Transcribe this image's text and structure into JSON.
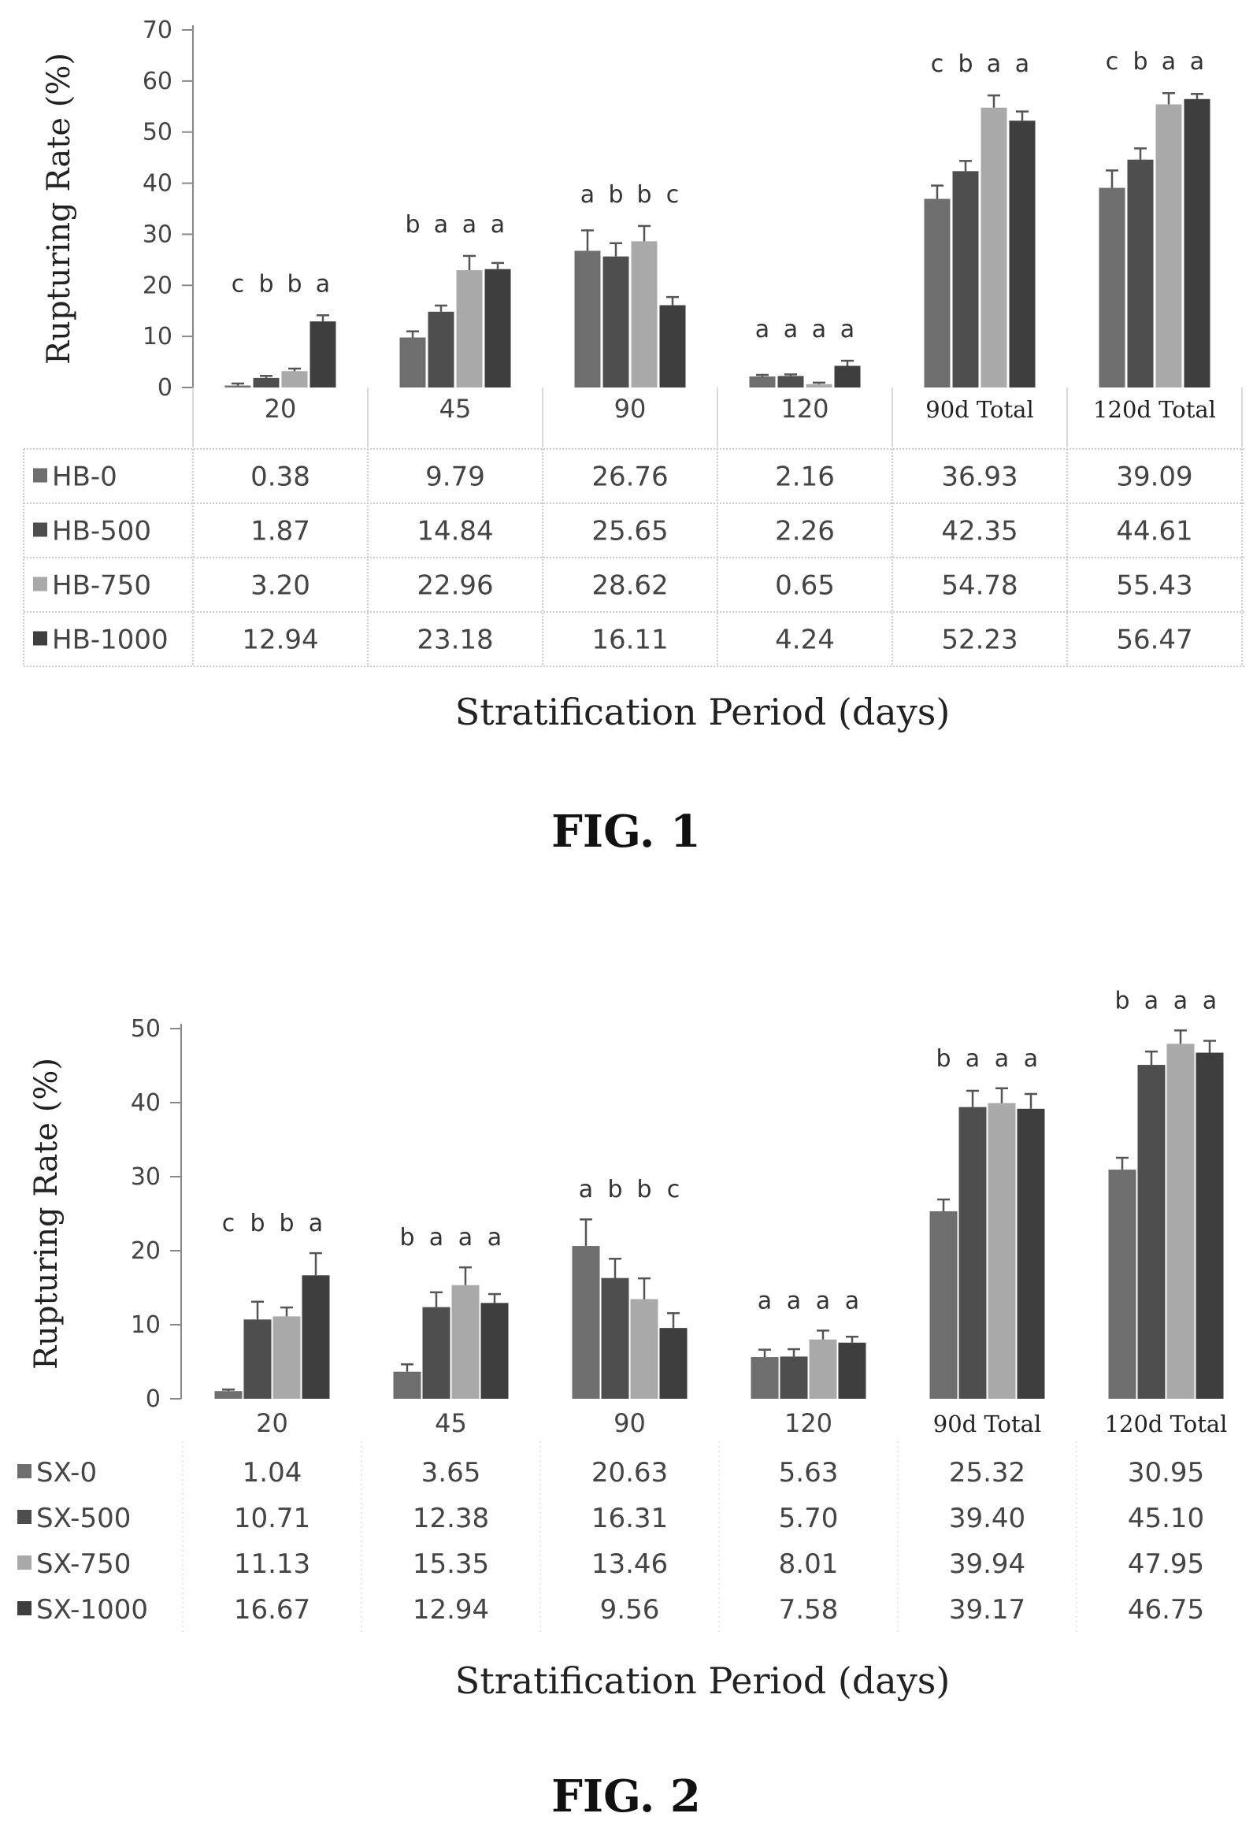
{
  "figures": [
    {
      "caption": "FIG. 1",
      "chart_data": {
        "type": "bar",
        "title": "",
        "ylabel": "Rupturing Rate (%)",
        "xlabel": "Stratification Period (days)",
        "ylim": [
          0,
          70
        ],
        "yticks": [
          0,
          10,
          20,
          30,
          40,
          50,
          60,
          70
        ],
        "categories": [
          "20",
          "45",
          "90",
          "120",
          "90d Total",
          "120d Total"
        ],
        "series": [
          {
            "name": "HB-0",
            "color": "#6e6e6e",
            "values": [
              0.38,
              9.79,
              26.76,
              2.16,
              36.93,
              39.09
            ],
            "err": [
              0.4,
              1.2,
              4.0,
              0.3,
              2.6,
              3.4
            ]
          },
          {
            "name": "HB-500",
            "color": "#4e4e4e",
            "values": [
              1.87,
              14.84,
              25.65,
              2.26,
              42.35,
              44.61
            ],
            "err": [
              0.4,
              1.2,
              2.6,
              0.3,
              2.0,
              2.2
            ]
          },
          {
            "name": "HB-750",
            "color": "#a9a9a9",
            "values": [
              3.2,
              22.96,
              28.62,
              0.65,
              54.78,
              55.43
            ],
            "err": [
              0.5,
              2.8,
              3.0,
              0.3,
              2.4,
              2.2
            ]
          },
          {
            "name": "HB-1000",
            "color": "#3e3e3e",
            "values": [
              12.94,
              23.18,
              16.11,
              4.24,
              52.23,
              56.47
            ],
            "err": [
              1.2,
              1.2,
              1.6,
              1.0,
              1.8,
              1.0
            ]
          }
        ],
        "significance": [
          [
            "c",
            "b",
            "b",
            "a"
          ],
          [
            "b",
            "a",
            "a",
            "a"
          ],
          [
            "a",
            "b",
            "b",
            "c"
          ],
          [
            "a",
            "a",
            "a",
            "a"
          ],
          [
            "c",
            "b",
            "a",
            "a"
          ],
          [
            "c",
            "b",
            "a",
            "a"
          ]
        ],
        "table": [
          [
            "0.38",
            "9.79",
            "26.76",
            "2.16",
            "36.93",
            "39.09"
          ],
          [
            "1.87",
            "14.84",
            "25.65",
            "2.26",
            "42.35",
            "44.61"
          ],
          [
            "3.20",
            "22.96",
            "28.62",
            "0.65",
            "54.78",
            "55.43"
          ],
          [
            "12.94",
            "23.18",
            "16.11",
            "4.24",
            "52.23",
            "56.47"
          ]
        ]
      }
    },
    {
      "caption": "FIG. 2",
      "chart_data": {
        "type": "bar",
        "title": "",
        "ylabel": "Rupturing Rate (%)",
        "xlabel": "Stratification Period (days)",
        "ylim": [
          0,
          50
        ],
        "yticks": [
          0,
          10,
          20,
          30,
          40,
          50
        ],
        "categories": [
          "20",
          "45",
          "90",
          "120",
          "90d Total",
          "120d Total"
        ],
        "series": [
          {
            "name": "SX-0",
            "color": "#6e6e6e",
            "values": [
              1.04,
              3.65,
              20.63,
              5.63,
              25.32,
              30.95
            ],
            "err": [
              0.2,
              1.0,
              3.6,
              1.0,
              1.6,
              1.6
            ]
          },
          {
            "name": "SX-500",
            "color": "#4e4e4e",
            "values": [
              10.71,
              12.38,
              16.31,
              5.7,
              39.4,
              45.1
            ],
            "err": [
              2.4,
              2.0,
              2.6,
              1.0,
              2.2,
              1.8
            ]
          },
          {
            "name": "SX-750",
            "color": "#a9a9a9",
            "values": [
              11.13,
              15.35,
              13.46,
              8.01,
              39.94,
              47.95
            ],
            "err": [
              1.2,
              2.4,
              2.8,
              1.2,
              2.0,
              1.8
            ]
          },
          {
            "name": "SX-1000",
            "color": "#3e3e3e",
            "values": [
              16.67,
              12.94,
              9.56,
              7.58,
              39.17,
              46.75
            ],
            "err": [
              3.0,
              1.2,
              2.0,
              0.8,
              2.0,
              1.6
            ]
          }
        ],
        "significance": [
          [
            "c",
            "b",
            "b",
            "a"
          ],
          [
            "b",
            "a",
            "a",
            "a"
          ],
          [
            "a",
            "b",
            "b",
            "c"
          ],
          [
            "a",
            "a",
            "a",
            "a"
          ],
          [
            "b",
            "a",
            "a",
            "a"
          ],
          [
            "b",
            "a",
            "a",
            "a"
          ]
        ],
        "table": [
          [
            "1.04",
            "3.65",
            "20.63",
            "5.63",
            "25.32",
            "30.95"
          ],
          [
            "10.71",
            "12.38",
            "16.31",
            "5.70",
            "39.40",
            "45.10"
          ],
          [
            "11.13",
            "15.35",
            "13.46",
            "8.01",
            "39.94",
            "47.95"
          ],
          [
            "16.67",
            "12.94",
            "9.56",
            "7.58",
            "39.17",
            "46.75"
          ]
        ]
      }
    }
  ]
}
